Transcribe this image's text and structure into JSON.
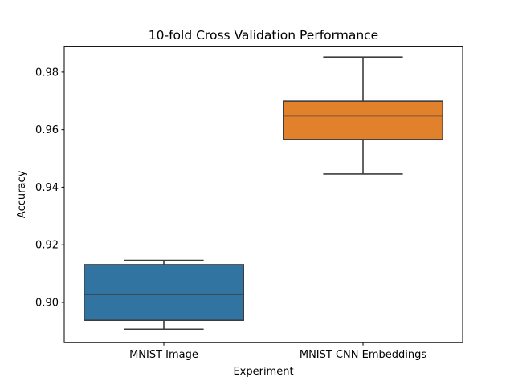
{
  "chart_data": {
    "type": "box",
    "title": "10-fold Cross Validation Performance",
    "xlabel": "Experiment",
    "ylabel": "Accuracy",
    "ylim": [
      0.886,
      0.989
    ],
    "yticks": [
      0.9,
      0.92,
      0.94,
      0.96,
      0.98
    ],
    "ytick_labels": [
      "0.90",
      "0.92",
      "0.94",
      "0.96",
      "0.98"
    ],
    "grid": false,
    "categories": [
      "MNIST Image",
      "MNIST CNN Embeddings"
    ],
    "boxes": [
      {
        "whisker_low": 0.8907,
        "q1": 0.8938,
        "median": 0.9028,
        "q3": 0.9131,
        "whisker_high": 0.9146,
        "color": "#3274a1"
      },
      {
        "whisker_low": 0.9446,
        "q1": 0.9566,
        "median": 0.9648,
        "q3": 0.9699,
        "whisker_high": 0.9852,
        "color": "#e1812c"
      }
    ],
    "line_color": "#3d3d3d"
  }
}
